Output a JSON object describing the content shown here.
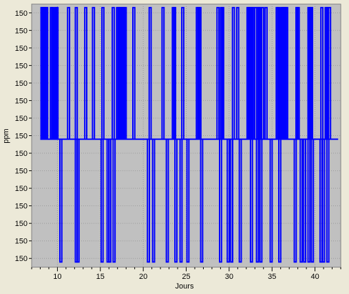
{
  "chart_data": {
    "type": "line",
    "title": "",
    "xlabel": "Jours",
    "ylabel": "ppm",
    "xlim": [
      7.0,
      43.0
    ],
    "ylim": [
      0,
      15
    ],
    "x_ticks": [
      10,
      15,
      20,
      25,
      30,
      35,
      40
    ],
    "y_tick_labels": [
      "150",
      "150",
      "150",
      "150",
      "150",
      "150",
      "150",
      "150",
      "150",
      "150",
      "150",
      "150",
      "150",
      "150",
      "150",
      "150"
    ],
    "grid": true,
    "baseline": 7.3,
    "high": 14.8,
    "low": 0.3,
    "series": [
      {
        "color": "#0000ff",
        "up_spikes": [
          8.2,
          8.3,
          8.45,
          8.6,
          8.75,
          9.3,
          9.45,
          9.8,
          9.95,
          11.3,
          12.2,
          13.3,
          14.2,
          15.3,
          16.5,
          17.0,
          17.15,
          17.3,
          17.45,
          17.6,
          17.75,
          17.9,
          18.9,
          20.8,
          22.3,
          23.5,
          23.65,
          24.6,
          26.3,
          26.45,
          26.6,
          28.7,
          29.1,
          29.25,
          30.5,
          31.0,
          32.2,
          32.35,
          32.5,
          32.65,
          32.8,
          33.1,
          33.4,
          33.55,
          33.9,
          34.3,
          35.6,
          35.75,
          36.1,
          36.25,
          36.4,
          36.55,
          36.7,
          37.9,
          38.05,
          39.3,
          39.45,
          39.6,
          40.8,
          41.3,
          41.45,
          41.7
        ],
        "down_spikes": [
          10.4,
          12.2,
          12.4,
          15.2,
          15.9,
          16.1,
          16.6,
          20.6,
          21.2,
          22.8,
          23.8,
          24.4,
          25.2,
          26.8,
          29.0,
          29.9,
          30.3,
          31.3,
          32.6,
          33.3,
          33.7,
          34.9,
          35.9,
          37.7,
          38.4,
          38.8,
          39.3,
          39.7,
          40.7,
          41.0,
          41.5
        ]
      }
    ],
    "x_end": 42.7
  }
}
